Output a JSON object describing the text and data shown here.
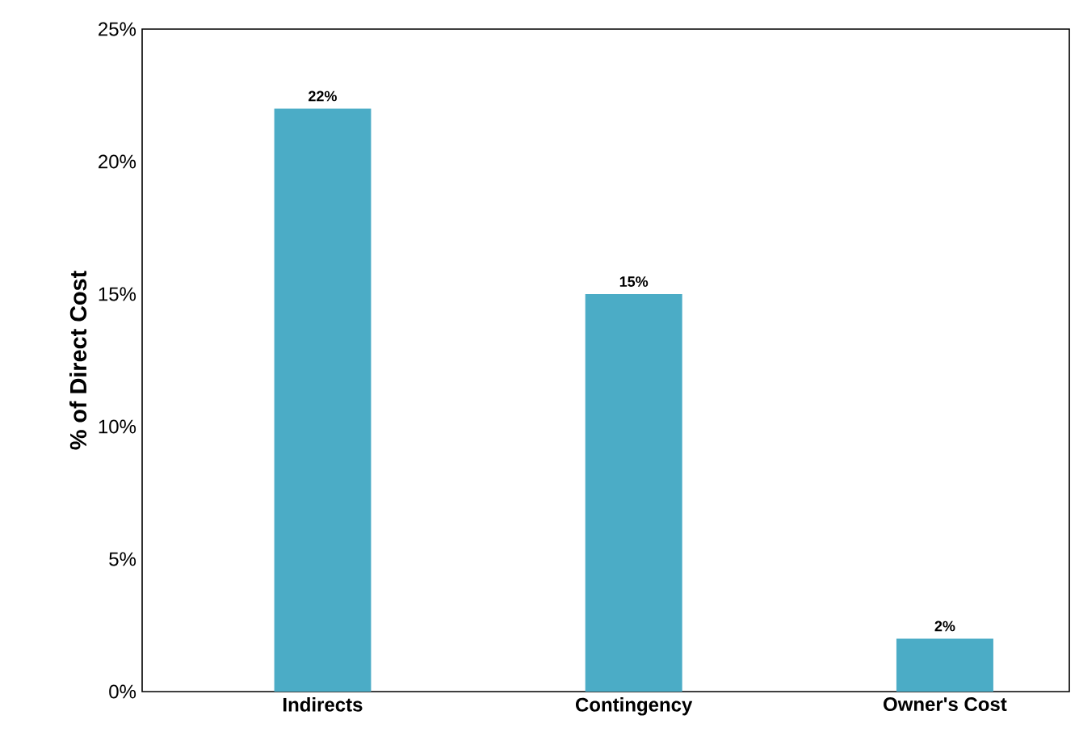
{
  "chart_data": {
    "type": "bar",
    "ylabel": "% of Direct Cost",
    "categories": [
      "Indirects",
      "Contingency",
      "Owner's Cost"
    ],
    "values": [
      22,
      15,
      2
    ],
    "color": "#4bacc6",
    "value_labels": [
      "22%",
      "15%",
      "2%"
    ],
    "ylim": [
      0,
      25
    ],
    "yticks": [
      {
        "value": 0,
        "label": "0%"
      },
      {
        "value": 5,
        "label": "5%"
      },
      {
        "value": 10,
        "label": "10%"
      },
      {
        "value": 15,
        "label": "15%"
      },
      {
        "value": 20,
        "label": "20%"
      },
      {
        "value": 25,
        "label": "25%"
      }
    ],
    "grid": false
  }
}
